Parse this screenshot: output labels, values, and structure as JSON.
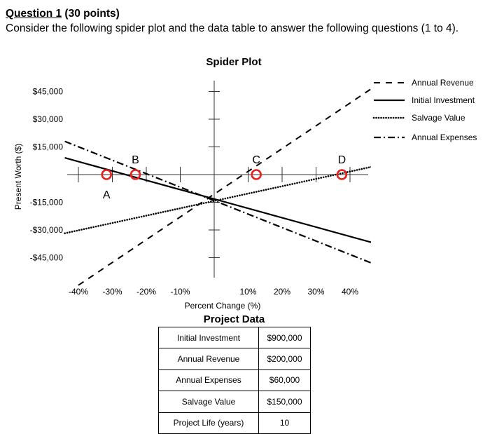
{
  "question": {
    "number": "Question 1",
    "points": "(30 points)",
    "text": "Consider the following spider plot and the data table to answer the following questions (1 to 4)."
  },
  "chart_data": {
    "type": "line",
    "title": "Spider Plot",
    "xlabel": "Percent Change (%)",
    "ylabel": "Present Worth ($)",
    "x_tick_labels": [
      "-40%",
      "-30%",
      "-20%",
      "-10%",
      "10%",
      "20%",
      "30%",
      "40%"
    ],
    "y_tick_labels": [
      "$45,000",
      "$30,000",
      "$15,000",
      "-$15,000",
      "-$30,000",
      "-$45,000"
    ],
    "xlim": [
      -44,
      50
    ],
    "ylim": [
      -60000,
      52000
    ],
    "series": [
      {
        "name": "Annual Revenue",
        "style": "dashed",
        "x": [
          -40,
          50
        ],
        "y": [
          -59950,
          51090
        ]
      },
      {
        "name": "Initial Investment",
        "style": "solid",
        "x": [
          -44,
          50
        ],
        "y": [
          9080,
          -38600
        ]
      },
      {
        "name": "Salvage Value",
        "style": "dotted",
        "x": [
          -44,
          50
        ],
        "y": [
          -31800,
          5640
        ]
      },
      {
        "name": "Annual Expenses",
        "style": "dashdot",
        "x": [
          -44,
          50
        ],
        "y": [
          17990,
          -50600
        ]
      }
    ],
    "annotations": [
      {
        "label": "A",
        "x": -31.7,
        "y": 0
      },
      {
        "label": "B",
        "x": -23.2,
        "y": 0
      },
      {
        "label": "C",
        "x": 12.4,
        "y": 0
      },
      {
        "label": "D",
        "x": 37.6,
        "y": 0
      }
    ],
    "legend_position": "top-right",
    "colors": {
      "lines": "#000000",
      "markers": "#e8201c"
    }
  },
  "project_data": {
    "title": "Project Data",
    "rows": [
      {
        "label": "Initial Investment",
        "value": "$900,000"
      },
      {
        "label": "Annual Revenue",
        "value": "$200,000"
      },
      {
        "label": "Annual Expenses",
        "value": "$60,000"
      },
      {
        "label": "Salvage Value",
        "value": "$150,000"
      },
      {
        "label": "Project Life (years)",
        "value": "10"
      }
    ]
  }
}
